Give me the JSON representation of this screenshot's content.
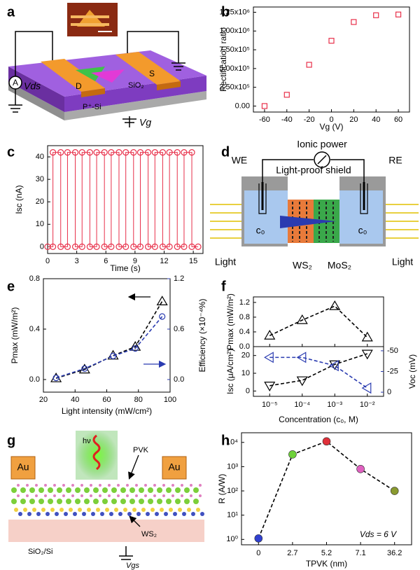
{
  "panel_labels": [
    "a",
    "b",
    "c",
    "d",
    "e",
    "f",
    "g",
    "h"
  ],
  "diagram_a": {
    "electrodes": [
      "D",
      "S"
    ],
    "layers": [
      "SiO₂",
      "P⁺-Si"
    ],
    "ammeter": "A",
    "drain_source_voltage": "Vds",
    "gate_voltage": "Vg"
  },
  "diagram_d": {
    "power": "Ionic power",
    "electrodes": [
      "WE",
      "RE"
    ],
    "shield": "Light-proof shield",
    "concentrations": [
      "c₀",
      "c₀"
    ],
    "light": [
      "Light",
      "Light"
    ],
    "materials": [
      "WS₂",
      "MoS₂"
    ]
  },
  "diagram_g": {
    "contacts": [
      "Au",
      "Au"
    ],
    "photon": "hν",
    "layers": [
      "PVK",
      "WS₂",
      "SiO₂/Si"
    ],
    "gate_voltage": "Vgs"
  },
  "chart_data": [
    {
      "type": "scatter",
      "xlabel": "Vg (V)",
      "ylabel": "Rectification ratio",
      "x": [
        -60,
        -40,
        -20,
        0,
        20,
        40,
        60
      ],
      "series": [
        {
          "values": [
            0,
            150000,
            550000,
            870000,
            1120000,
            1210000,
            1220000
          ],
          "color": "#e8304a",
          "marker": "square"
        }
      ],
      "xlim": [
        -70,
        70
      ],
      "xticks": [
        -60,
        -40,
        -20,
        0,
        20,
        40,
        60
      ],
      "ylim": [
        -80000,
        1320000
      ],
      "yticks": [
        {
          "value": 0,
          "label": "0.00"
        },
        {
          "value": 250000,
          "label": "2.50x10⁵"
        },
        {
          "value": 500000,
          "label": "5.00x10⁵"
        },
        {
          "value": 750000,
          "label": "7.50x10⁵"
        },
        {
          "value": 1000000,
          "label": "1.00x10⁶"
        },
        {
          "value": 1250000,
          "label": "1.25x10⁶"
        }
      ]
    },
    {
      "type": "line",
      "xlabel": "Time (s)",
      "ylabel": "Isc (nA)",
      "x": [
        0,
        0.55,
        0.55,
        1.35,
        1.35,
        2.05,
        2.05,
        2.85,
        2.85,
        3.55,
        3.55,
        4.35,
        4.35,
        5.05,
        5.05,
        5.85,
        5.85,
        6.55,
        6.55,
        7.35,
        7.35,
        8.05,
        8.05,
        8.85,
        8.85,
        9.55,
        9.55,
        10.35,
        10.35,
        11.05,
        11.05,
        11.85,
        11.85,
        12.55,
        12.55,
        13.35,
        13.35,
        14.05,
        14.05,
        14.85,
        14.85,
        15.5
      ],
      "series": [
        {
          "values": [
            0,
            0,
            42,
            42,
            0,
            0,
            42,
            42,
            0,
            0,
            42,
            42,
            0,
            0,
            42,
            42,
            0,
            0,
            42,
            42,
            0,
            0,
            42,
            42,
            0,
            0,
            42,
            42,
            0,
            0,
            42,
            42,
            0,
            0,
            42,
            42,
            0,
            0,
            42,
            42,
            0,
            0
          ],
          "color": "#e8304a",
          "marker": "circle"
        }
      ],
      "xlim": [
        0,
        16
      ],
      "xticks": [
        0,
        3,
        6,
        9,
        12,
        15
      ],
      "ylim": [
        -3,
        45
      ],
      "yticks": [
        0,
        10,
        20,
        30,
        40
      ]
    },
    {
      "type": "line",
      "xlabel": "Light intensity (mW/cm²)",
      "ylabel": "Pmax (mW/m²)",
      "y2label": "Efficiency (×10⁻⁴%)",
      "x": [
        28,
        46,
        64,
        78,
        95
      ],
      "series": [
        {
          "values": [
            0.01,
            0.08,
            0.19,
            0.26,
            0.62
          ],
          "color": "#000000",
          "marker": "triangle",
          "dash": true,
          "axis": "y"
        },
        {
          "values": [
            0.02,
            0.13,
            0.28,
            0.37,
            0.75
          ],
          "color": "#2a3bb0",
          "marker": "circle",
          "dash": true,
          "axis": "y2"
        }
      ],
      "xlim": [
        20,
        100
      ],
      "xticks": [
        20,
        40,
        60,
        80,
        100
      ],
      "ylim": [
        -0.1,
        0.8
      ],
      "yticks": [
        {
          "value": 0,
          "label": "0.0"
        },
        0.4,
        0.8
      ],
      "y2lim": [
        -0.15,
        1.2
      ],
      "y2ticks": [
        {
          "value": 0,
          "label": "0.0"
        },
        0.6,
        1.2
      ]
    },
    {
      "type": "line",
      "xlabel": "Concentration (c₀, M)",
      "categories": [
        "10⁻⁵",
        "10⁻⁴",
        "10⁻³",
        "10⁻²"
      ],
      "subplots": [
        {
          "ylabel": "Pmax (mW/m²)",
          "ylim": [
            0,
            1.35
          ],
          "yticks": [
            {
              "value": 0,
              "label": "0.0"
            },
            0.4,
            0.8,
            1.2
          ],
          "series": [
            {
              "values": [
                0.3,
                0.72,
                1.1,
                0.25
              ],
              "color": "#000000",
              "marker": "triangle",
              "dash": true
            }
          ]
        },
        {
          "ylabel": "Isc (μA/cm²)",
          "ylim": [
            -3,
            25
          ],
          "yticks": [
            0,
            10,
            20
          ],
          "y2label": "Voc (mV)",
          "y2lim": [
            5,
            -55
          ],
          "y2ticks": [
            -50,
            -25,
            0
          ],
          "series": [
            {
              "values": [
                3,
                6,
                15,
                21
              ],
              "color": "#000000",
              "marker": "triangle-down",
              "dash": true
            },
            {
              "values": [
                -42,
                -42,
                -32,
                -5
              ],
              "color": "#2a3bb0",
              "marker": "triangle-left",
              "dash": true,
              "axis": "y2"
            }
          ]
        }
      ]
    },
    {
      "type": "line",
      "log": true,
      "xlabel": "TPVK (nm)",
      "ylabel": "R (A/W)",
      "annotation": "Vds = 6 V",
      "categories": [
        "0",
        "2.7",
        "5.2",
        "7.1",
        "36.2"
      ],
      "series": [
        {
          "values": [
            1.1,
            3200,
            11000,
            800,
            100
          ],
          "color": "#000000",
          "dash": true,
          "marker": "circle",
          "point_colors": [
            "#3040d0",
            "#6ed13a",
            "#e0303a",
            "#e060c0",
            "#8a9a30"
          ]
        }
      ],
      "ylim": [
        0.6,
        25000
      ],
      "yticks": [
        {
          "value": 1,
          "label": "10⁰"
        },
        {
          "value": 10,
          "label": "10¹"
        },
        {
          "value": 100,
          "label": "10²"
        },
        {
          "value": 1000,
          "label": "10³"
        },
        {
          "value": 10000,
          "label": "10⁴"
        }
      ]
    }
  ]
}
